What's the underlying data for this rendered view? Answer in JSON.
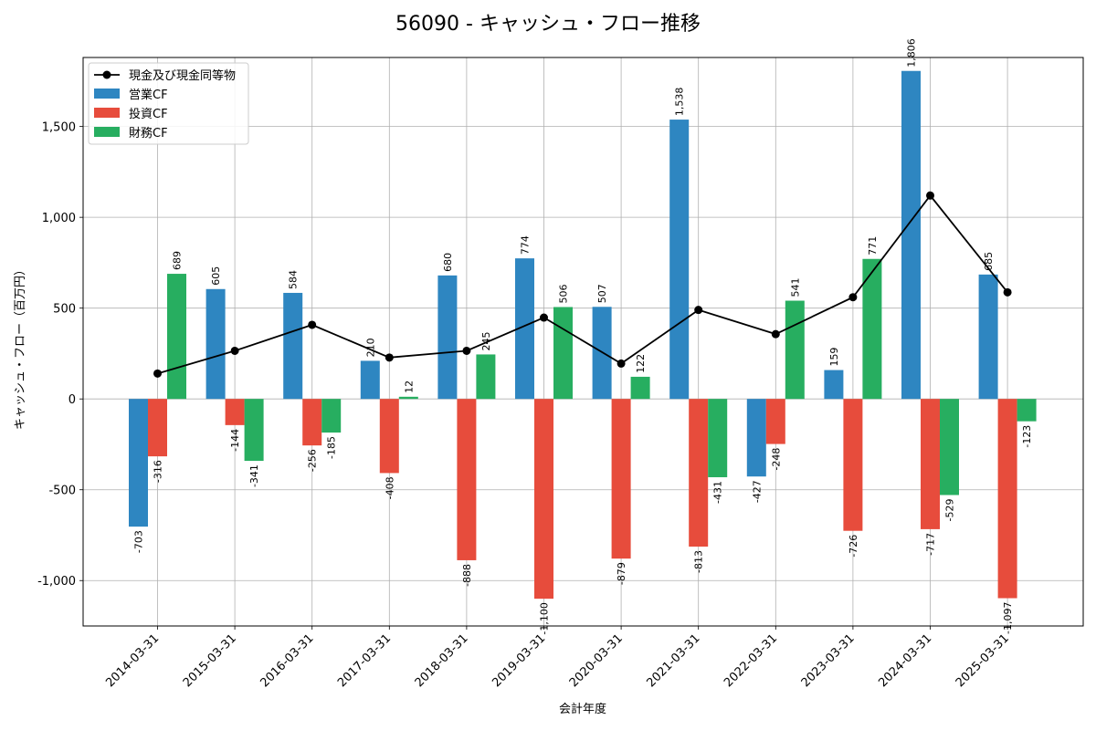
{
  "chart_data": {
    "type": "bar",
    "title": "56090 - キャッシュ・フロー推移",
    "xlabel": "会計年度",
    "ylabel": "キャッシュ・フロー（百万円）",
    "categories": [
      "2014-03-31",
      "2015-03-31",
      "2016-03-31",
      "2017-03-31",
      "2018-03-31",
      "2019-03-31",
      "2020-03-31",
      "2021-03-31",
      "2022-03-31",
      "2023-03-31",
      "2024-03-31",
      "2025-03-31"
    ],
    "ylim": [
      -1250,
      1880
    ],
    "yticks": [
      -1000,
      -500,
      0,
      500,
      1000,
      1500
    ],
    "ytick_labels": [
      "-1,000",
      "-500",
      "0",
      "500",
      "1,000",
      "1,500"
    ],
    "grid": true,
    "legend_position": "top-left",
    "series": [
      {
        "name": "営業CF",
        "type": "bar",
        "color": "#2e86c1",
        "values": [
          -703,
          605,
          584,
          210,
          680,
          774,
          507,
          1538,
          -427,
          159,
          1806,
          685
        ],
        "labels": [
          "-703",
          "605",
          "584",
          "210",
          "680",
          "774",
          "507",
          "1,538",
          "-427",
          "159",
          "1,806",
          "685"
        ]
      },
      {
        "name": "投資CF",
        "type": "bar",
        "color": "#e74c3c",
        "values": [
          -316,
          -144,
          -256,
          -408,
          -888,
          -1100,
          -879,
          -813,
          -248,
          -726,
          -717,
          -1097
        ],
        "labels": [
          "-316",
          "-144",
          "-256",
          "-408",
          "-888",
          "-1,100",
          "-879",
          "-813",
          "-248",
          "-726",
          "-717",
          "-1,097"
        ]
      },
      {
        "name": "財務CF",
        "type": "bar",
        "color": "#27ae60",
        "values": [
          689,
          -341,
          -185,
          12,
          245,
          506,
          122,
          -431,
          541,
          771,
          -529,
          -123
        ],
        "labels": [
          "689",
          "-341",
          "-185",
          "12",
          "245",
          "506",
          "122",
          "-431",
          "541",
          "771",
          "-529",
          "-123"
        ]
      },
      {
        "name": "現金及び現金同等物",
        "type": "line",
        "color": "#000000",
        "values": [
          140,
          265,
          408,
          228,
          265,
          448,
          195,
          490,
          357,
          560,
          1120,
          587
        ]
      }
    ]
  }
}
